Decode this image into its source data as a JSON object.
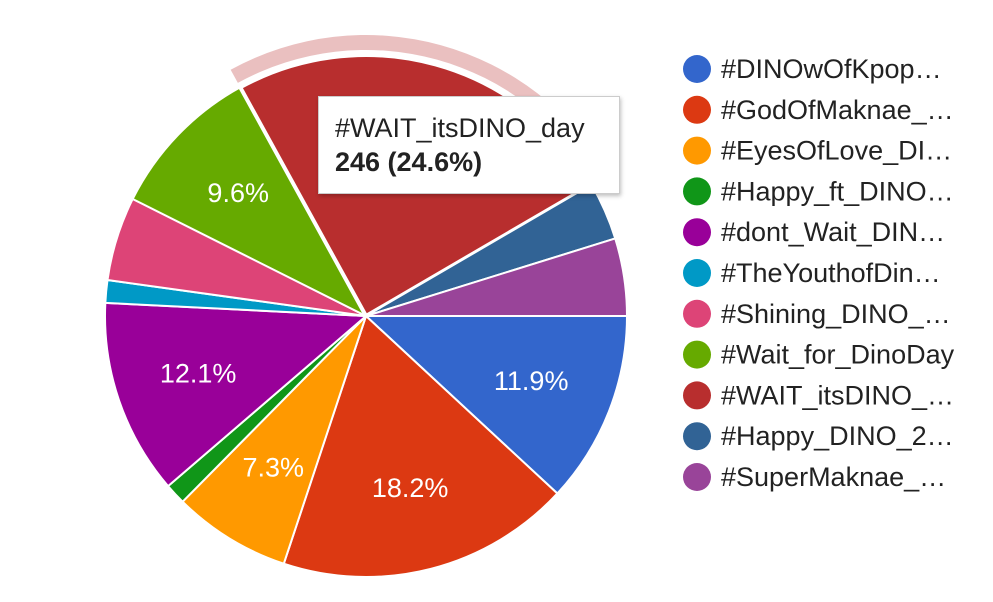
{
  "chart_data": {
    "type": "pie",
    "slices": [
      {
        "name": "#DINOwOfKpop…",
        "value": 11.9,
        "label": "11.9%",
        "color": "#3366cc"
      },
      {
        "name": "#GodOfMaknae_…",
        "value": 18.2,
        "label": "18.2%",
        "color": "#dc3912"
      },
      {
        "name": "#EyesOfLove_DI…",
        "value": 7.3,
        "label": "7.3%",
        "color": "#ff9900"
      },
      {
        "name": "#Happy_ft_DINO…",
        "value": 1.3,
        "label": "",
        "color": "#109618"
      },
      {
        "name": "#dont_Wait_DIN…",
        "value": 12.1,
        "label": "12.1%",
        "color": "#990099"
      },
      {
        "name": "#TheYouthofDin…",
        "value": 1.4,
        "label": "",
        "color": "#0099c6"
      },
      {
        "name": "#Shining_DINO_…",
        "value": 5.2,
        "label": "",
        "color": "#dd4477"
      },
      {
        "name": "#Wait_for_DinoDay",
        "value": 9.6,
        "label": "9.6%",
        "color": "#66aa00"
      },
      {
        "name": "#WAIT_itsDINO_…",
        "value": 24.6,
        "label": "",
        "color": "#b82e2e"
      },
      {
        "name": "#Happy_DINO_2…",
        "value": 3.6,
        "label": "",
        "color": "#316395"
      },
      {
        "name": "#SuperMaknae_…",
        "value": 4.8,
        "label": "",
        "color": "#994499"
      }
    ],
    "highlighted_slice": "#WAIT_itsDINO_…",
    "legend_position": "right"
  },
  "tooltip": {
    "label": "#WAIT_itsDINO_day",
    "value": "246 (24.6%)"
  }
}
